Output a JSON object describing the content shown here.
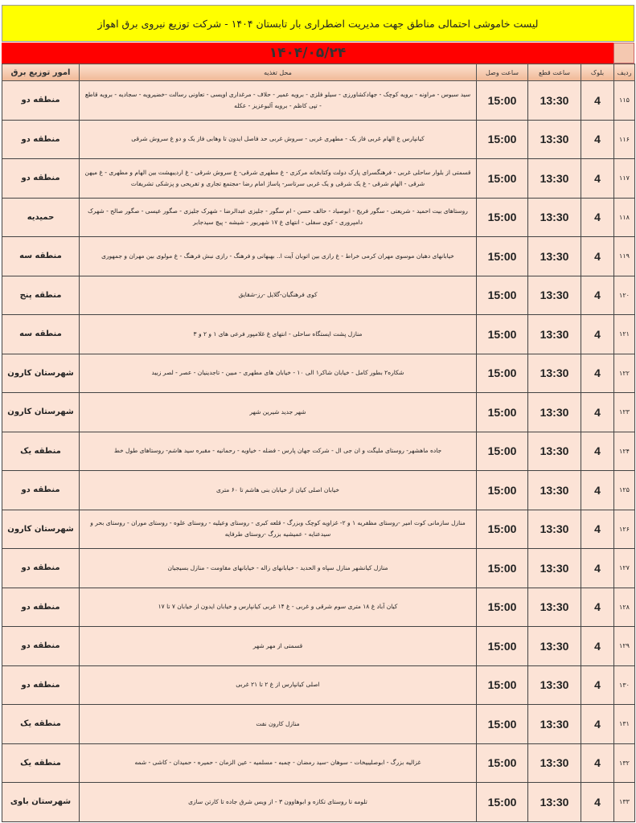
{
  "title": "لیست خاموشی احتمالی مناطق جهت مدیریت اضطراری بار تابستان ۱۴۰۴ - شرکت توزیع نیروی برق اهواز",
  "date": "۱۴۰۴/۰۵/۲۴",
  "colors": {
    "title_bg": "#ffff00",
    "date_bg": "#ff0000",
    "cell_bg": "#fce3d6"
  },
  "headers": {
    "radif": "ردیف",
    "block": "بلوک",
    "cut": "ساعت قطع",
    "reconnect": "ساعت وصل",
    "location": "محل تغذیه",
    "region": "امور توزیع برق"
  },
  "rows": [
    {
      "radif": "۱۱۵",
      "block": "4",
      "cut": "13:30",
      "reconnect": "15:00",
      "location": "سید سبوس - مراونه - برویه کوچک - جهادکشاورزی - سیلو فلزی - برویه عمیر - حلاف - مرغداری اویسی - تعاونی رسالت -خضیرویه - سجادیه - برویه قاطع - تپی کاظم - برویه آلبوعزیز - عکله",
      "region": "منطقه دو"
    },
    {
      "radif": "۱۱۶",
      "block": "4",
      "cut": "13:30",
      "reconnect": "15:00",
      "location": "کیانپارس غ الهام غربی فاز یک - مطهری غربی - سروش غربی حد فاصل ایدون تا وهابی فاز یک و دو غ سروش شرقی",
      "region": "منطقه دو"
    },
    {
      "radif": "۱۱۷",
      "block": "4",
      "cut": "13:30",
      "reconnect": "15:00",
      "location": "قسمتی از بلوار ساحلی غربی - فرهنگسرای پارک دولت وکتابخانه مرکزی - غ مطهری شرقی- غ سروش شرقی - غ اردیبهشت بین الهام و مطهری - غ میهن شرقی - الهام شرقی - غ یک شرقی و یک غربی سرتاسر- پاساژ امام رضا -مجتمع تجاری و تفریحی و پزشکی تشریفات",
      "region": "منطقه دو"
    },
    {
      "radif": "۱۱۸",
      "block": "4",
      "cut": "13:30",
      "reconnect": "15:00",
      "location": "روستاهای بیت احمید - شریعتی - سگور فریج - ابوصیاد - حالف حسن - ام سگور - جلیزی عبدالرضا - شهرک جلیزی - صگور عیسی - صگور صالح - شهرک دامپروری - کوی سفلی - انتهای غ ۱۷ شهریور - شیشه - پیچ سیدجابر",
      "region": "حمیدیه"
    },
    {
      "radif": "۱۱۹",
      "block": "4",
      "cut": "13:30",
      "reconnect": "15:00",
      "location": "خیابانهای دهبان موسوی مهران کرمی خراط - غ رازی بین اتوبان آیت ا.. بهبهانی و فرهنگ - رازی نبش فرهنگ - غ مولوی بین مهران و جمهوری",
      "region": "منطقه سه"
    },
    {
      "radif": "۱۲۰",
      "block": "4",
      "cut": "13:30",
      "reconnect": "15:00",
      "location": "کوی فرهنگیان-گلایل -رز-شقایق",
      "region": "منطقه پنج"
    },
    {
      "radif": "۱۲۱",
      "block": "4",
      "cut": "13:30",
      "reconnect": "15:00",
      "location": "منازل پشت ایستگاه ساحلی - انتهای غ غلامپور فرعی های ۱ و ۲ و ۳",
      "region": "منطقه سه"
    },
    {
      "radif": "۱۲۲",
      "block": "4",
      "cut": "13:30",
      "reconnect": "15:00",
      "location": "شکاره۲ بطور کامل - خیابان شاکر۱ الی ۱۰ - خیابان های مطهری - مبین - تاجدینیان - عصر - لصر زبید",
      "region": "شهرستان کارون"
    },
    {
      "radif": "۱۲۳",
      "block": "4",
      "cut": "13:30",
      "reconnect": "15:00",
      "location": "شهر جدید شیرین شهر",
      "region": "شهرستان کارون"
    },
    {
      "radif": "۱۲۴",
      "block": "4",
      "cut": "13:30",
      "reconnect": "15:00",
      "location": "جاده ماهشهر- روستای ملیگت و ان جی ال - شرکت جهان پارس - فضله - خیاویه - رحمانیه - مقبره سید هاشم- روستاهای طول خط",
      "region": "منطقه یک"
    },
    {
      "radif": "۱۲۵",
      "block": "4",
      "cut": "13:30",
      "reconnect": "15:00",
      "location": "خیابان اصلی کیان از خیابان بنی هاشم تا ۶۰ متری",
      "region": "منطقه دو"
    },
    {
      "radif": "۱۲۶",
      "block": "4",
      "cut": "13:30",
      "reconnect": "15:00",
      "location": "منازل سازمانی کوت امیر -روستای مظفریه ۱ و ۲- غزاویه کوچک وبزرگ - قلعه کبری - روستای وعیلیه - روستای علوه - روستای موران - روستای بحر و سیدعنایه - عمیشیه بزرگ -روستای طرفایه",
      "region": "شهرستان کارون"
    },
    {
      "radif": "۱۲۷",
      "block": "4",
      "cut": "13:30",
      "reconnect": "15:00",
      "location": "منازل کیانشهر منازل سپاه و الحدید - خیابانهای زاله - خیابانهای مقاومت - منازل بسیجیان",
      "region": "منطقه دو"
    },
    {
      "radif": "۱۲۸",
      "block": "4",
      "cut": "13:30",
      "reconnect": "15:00",
      "location": "کیان آباد غ ۱۸ متری سوم شرقی و غربی - غ ۱۴ غربی کیانپارس و خیابان ایدون از خیابان ۷ تا ۱۷",
      "region": "منطقه دو"
    },
    {
      "radif": "۱۲۹",
      "block": "4",
      "cut": "13:30",
      "reconnect": "15:00",
      "location": "قسمتی از مهر شهر",
      "region": "منطقه دو"
    },
    {
      "radif": "۱۳۰",
      "block": "4",
      "cut": "13:30",
      "reconnect": "15:00",
      "location": "اصلی کیانپارس از غ ۲ تا ۲۱ غربی",
      "region": "منطقه دو"
    },
    {
      "radif": "۱۳۱",
      "block": "4",
      "cut": "13:30",
      "reconnect": "15:00",
      "location": "منازل کارون نفت",
      "region": "منطقه یک"
    },
    {
      "radif": "۱۳۲",
      "block": "4",
      "cut": "13:30",
      "reconnect": "15:00",
      "location": "غزالیه بزرگ - ابوصلیبیخات - سوهان -سید رمضان - چمبه - مسلمیه - عین الزمان - حمیره - حمیدان - کاشی - شمه",
      "region": "منطقه یک"
    },
    {
      "radif": "۱۳۳",
      "block": "4",
      "cut": "13:30",
      "reconnect": "15:00",
      "location": "تلومه تا روستای تکازه و ابوهاوون ۳ - از ویس شرق جاده تا کارتن سازی",
      "region": "شهرستان باوی"
    }
  ]
}
